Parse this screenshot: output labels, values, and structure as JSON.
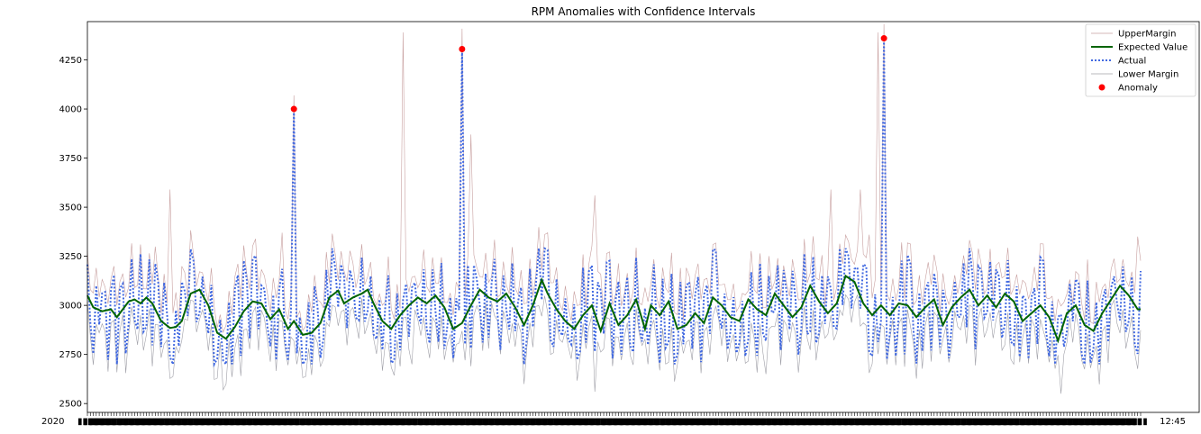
{
  "chart_data": {
    "type": "line",
    "title": "RPM Anomalies with Confidence Intervals",
    "xlabel": "",
    "ylabel": "",
    "ylim": [
      2455,
      4445
    ],
    "yticks": [
      2500,
      2750,
      3000,
      3250,
      3500,
      3750,
      4000,
      4250
    ],
    "x_tick_label_first": "2020",
    "x_tick_label_last": "12:45",
    "legend_position": "top-right",
    "grid": false,
    "colors": {
      "upper": "#c8a0a0",
      "expected": "#006400",
      "actual": "#4169e1",
      "lower": "#a0a0a8",
      "anomaly": "#ff0000"
    },
    "legend": [
      {
        "key": "upper",
        "label": "UpperMargin"
      },
      {
        "key": "expected",
        "label": "Expected Value"
      },
      {
        "key": "actual",
        "label": "Actual"
      },
      {
        "key": "lower",
        "label": "Lower Margin"
      },
      {
        "key": "anomaly",
        "label": "Anomaly"
      }
    ],
    "n_points": 194,
    "series": [
      {
        "key": "expected",
        "name": "Expected Value",
        "keypoints": [
          [
            0,
            3050
          ],
          [
            2,
            2990
          ],
          [
            5,
            2970
          ],
          [
            8,
            2980
          ],
          [
            10,
            2940
          ],
          [
            14,
            3020
          ],
          [
            16,
            3030
          ],
          [
            18,
            3010
          ],
          [
            20,
            3040
          ],
          [
            22,
            3010
          ],
          [
            25,
            2920
          ],
          [
            28,
            2885
          ],
          [
            30,
            2890
          ],
          [
            32,
            2920
          ],
          [
            35,
            3060
          ],
          [
            38,
            3080
          ],
          [
            41,
            3000
          ],
          [
            44,
            2860
          ],
          [
            47,
            2830
          ],
          [
            50,
            2890
          ],
          [
            53,
            2970
          ],
          [
            56,
            3020
          ],
          [
            59,
            3010
          ],
          [
            62,
            2930
          ],
          [
            65,
            2980
          ],
          [
            68,
            2880
          ],
          [
            70,
            2920
          ],
          [
            73,
            2850
          ],
          [
            76,
            2860
          ],
          [
            79,
            2910
          ],
          [
            82,
            3040
          ],
          [
            85,
            3075
          ],
          [
            87,
            3010
          ],
          [
            90,
            3040
          ],
          [
            93,
            3060
          ],
          [
            95,
            3080
          ],
          [
            97,
            3010
          ],
          [
            100,
            2920
          ],
          [
            103,
            2880
          ],
          [
            106,
            2950
          ],
          [
            109,
            3000
          ],
          [
            112,
            3040
          ],
          [
            115,
            3010
          ],
          [
            118,
            3050
          ],
          [
            121,
            2990
          ],
          [
            124,
            2880
          ],
          [
            127,
            2910
          ],
          [
            130,
            3000
          ],
          [
            133,
            3080
          ],
          [
            136,
            3040
          ],
          [
            139,
            3020
          ],
          [
            142,
            3060
          ],
          [
            145,
            2990
          ],
          [
            148,
            2900
          ],
          [
            151,
            3000
          ],
          [
            154,
            3130
          ],
          [
            156,
            3060
          ],
          [
            159,
            2980
          ],
          [
            162,
            2920
          ],
          [
            165,
            2880
          ],
          [
            168,
            2950
          ],
          [
            171,
            3000
          ],
          [
            174,
            2870
          ],
          [
            177,
            3010
          ],
          [
            180,
            2900
          ],
          [
            183,
            2950
          ],
          [
            186,
            3030
          ],
          [
            189,
            2880
          ],
          [
            191,
            3000
          ],
          [
            194,
            2950
          ],
          [
            197,
            3020
          ],
          [
            200,
            2880
          ],
          [
            203,
            2900
          ],
          [
            206,
            2960
          ],
          [
            209,
            2910
          ],
          [
            212,
            3040
          ],
          [
            215,
            3000
          ],
          [
            218,
            2940
          ],
          [
            221,
            2920
          ],
          [
            224,
            3030
          ],
          [
            227,
            2980
          ],
          [
            230,
            2950
          ],
          [
            233,
            3060
          ],
          [
            236,
            3000
          ],
          [
            239,
            2940
          ],
          [
            242,
            2990
          ],
          [
            245,
            3100
          ],
          [
            248,
            3020
          ],
          [
            251,
            2960
          ],
          [
            254,
            3010
          ],
          [
            257,
            3150
          ],
          [
            260,
            3120
          ],
          [
            263,
            3010
          ],
          [
            266,
            2950
          ],
          [
            269,
            3000
          ],
          [
            272,
            2950
          ],
          [
            275,
            3010
          ],
          [
            278,
            3000
          ],
          [
            281,
            2940
          ],
          [
            284,
            2990
          ],
          [
            287,
            3030
          ],
          [
            290,
            2900
          ],
          [
            293,
            2990
          ],
          [
            296,
            3040
          ],
          [
            299,
            3080
          ],
          [
            302,
            3000
          ],
          [
            305,
            3050
          ],
          [
            308,
            2990
          ],
          [
            311,
            3060
          ],
          [
            314,
            3020
          ],
          [
            317,
            2920
          ],
          [
            320,
            2960
          ],
          [
            323,
            3000
          ],
          [
            326,
            2940
          ],
          [
            329,
            2820
          ],
          [
            332,
            2960
          ],
          [
            335,
            3000
          ],
          [
            338,
            2900
          ],
          [
            341,
            2870
          ],
          [
            344,
            2960
          ],
          [
            347,
            3030
          ],
          [
            350,
            3100
          ],
          [
            353,
            3050
          ],
          [
            356,
            2980
          ]
        ]
      }
    ],
    "anomalies": [
      {
        "x": 70,
        "y": 4000
      },
      {
        "x": 127,
        "y": 4305
      },
      {
        "x": 270,
        "y": 4360
      }
    ]
  }
}
